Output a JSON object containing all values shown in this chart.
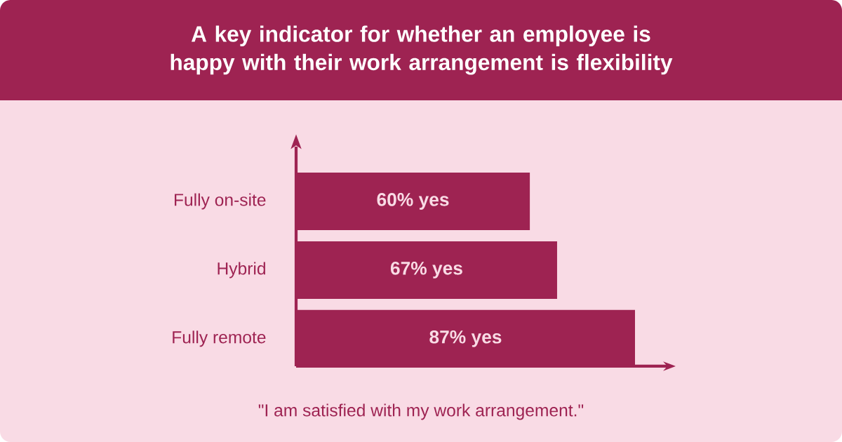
{
  "chart_data": {
    "type": "bar",
    "orientation": "horizontal",
    "title": "A key indicator for whether an employee is happy with their work arrangement is flexibility",
    "categories": [
      "Fully on-site",
      "Hybrid",
      "Fully remote"
    ],
    "values": [
      60,
      67,
      87
    ],
    "value_labels": [
      "60% yes",
      "67% yes",
      "87% yes"
    ],
    "color": "#9e2352",
    "annotations": [
      "\"I am satisfied with my work arrangement.\""
    ]
  }
}
